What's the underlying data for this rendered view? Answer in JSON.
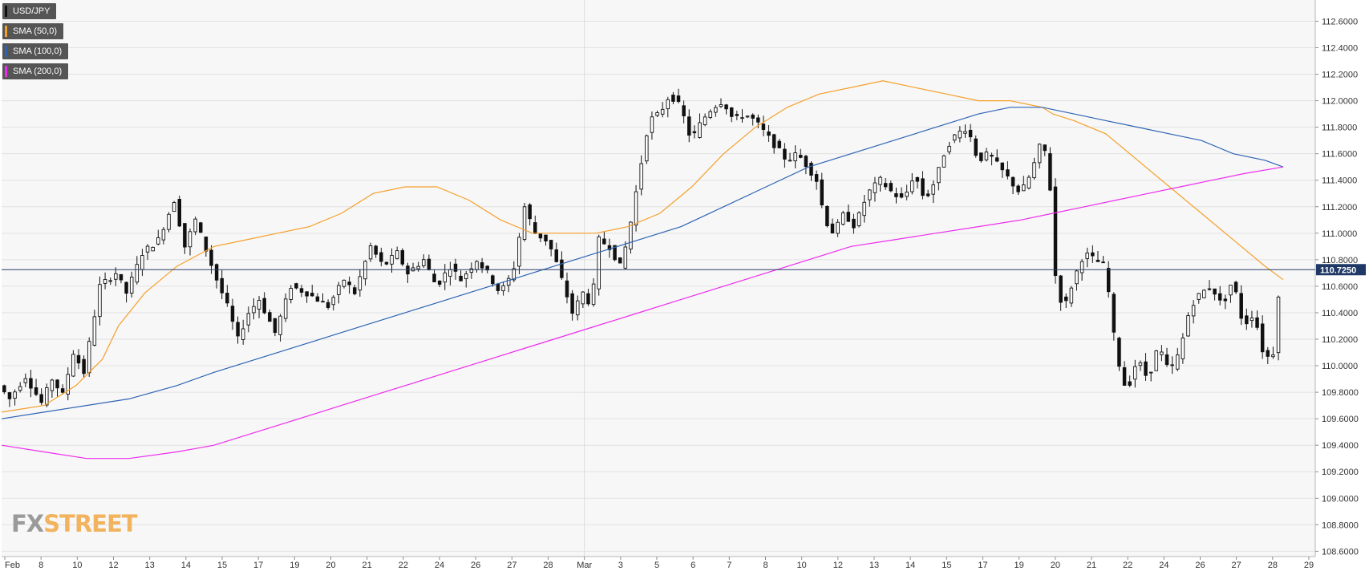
{
  "chart_data": {
    "type": "candlestick",
    "symbol": "USD/JPY",
    "legend": [
      {
        "label": "USD/JPY",
        "color": "#111111"
      },
      {
        "label": "SMA (50,0)",
        "color": "#f5a02a"
      },
      {
        "label": "SMA (100,0)",
        "color": "#2e64b4"
      },
      {
        "label": "SMA (200,0)",
        "color": "#ee2cee"
      }
    ],
    "ylim": [
      108.56,
      112.76
    ],
    "y_ticks": [
      "112.6000",
      "112.4000",
      "112.2000",
      "112.0000",
      "111.8000",
      "111.6000",
      "111.4000",
      "111.2000",
      "111.0000",
      "110.8000",
      "110.6000",
      "110.4000",
      "110.2000",
      "110.0000",
      "109.8000",
      "109.6000",
      "109.4000",
      "109.2000",
      "109.0000",
      "108.8000",
      "108.6000"
    ],
    "x_ticks": [
      "Feb",
      "8",
      "10",
      "12",
      "13",
      "14",
      "15",
      "17",
      "19",
      "20",
      "21",
      "22",
      "24",
      "26",
      "27",
      "28",
      "Mar",
      "3",
      "5",
      "6",
      "7",
      "8",
      "10",
      "12",
      "13",
      "14",
      "15",
      "17",
      "19",
      "20",
      "21",
      "22",
      "24",
      "26",
      "27",
      "28",
      "29"
    ],
    "last_price": 110.725,
    "last_price_label": "110.7250",
    "price_path": [
      [
        0,
        109.85
      ],
      [
        10,
        109.75
      ],
      [
        25,
        109.92
      ],
      [
        40,
        109.72
      ],
      [
        50,
        109.9
      ],
      [
        60,
        109.78
      ],
      [
        70,
        110.1
      ],
      [
        80,
        109.95
      ],
      [
        95,
        110.6
      ],
      [
        110,
        110.7
      ],
      [
        120,
        110.55
      ],
      [
        135,
        110.85
      ],
      [
        150,
        110.95
      ],
      [
        165,
        111.25
      ],
      [
        175,
        110.9
      ],
      [
        185,
        111.1
      ],
      [
        205,
        110.65
      ],
      [
        215,
        110.45
      ],
      [
        225,
        110.2
      ],
      [
        235,
        110.4
      ],
      [
        245,
        110.5
      ],
      [
        260,
        110.25
      ],
      [
        275,
        110.6
      ],
      [
        290,
        110.55
      ],
      [
        310,
        110.45
      ],
      [
        325,
        110.65
      ],
      [
        335,
        110.55
      ],
      [
        350,
        110.9
      ],
      [
        362,
        110.75
      ],
      [
        375,
        110.85
      ],
      [
        385,
        110.7
      ],
      [
        400,
        110.8
      ],
      [
        412,
        110.6
      ],
      [
        425,
        110.75
      ],
      [
        435,
        110.65
      ],
      [
        450,
        110.8
      ],
      [
        460,
        110.7
      ],
      [
        472,
        110.55
      ],
      [
        484,
        110.7
      ],
      [
        495,
        111.2
      ],
      [
        505,
        111.0
      ],
      [
        515,
        110.95
      ],
      [
        522,
        110.85
      ],
      [
        532,
        110.6
      ],
      [
        540,
        110.4
      ],
      [
        550,
        110.55
      ],
      [
        558,
        110.45
      ],
      [
        565,
        110.95
      ],
      [
        575,
        110.9
      ],
      [
        585,
        110.75
      ],
      [
        592,
        110.95
      ],
      [
        602,
        111.4
      ],
      [
        612,
        111.85
      ],
      [
        622,
        111.9
      ],
      [
        632,
        112.05
      ],
      [
        642,
        111.95
      ],
      [
        652,
        111.7
      ],
      [
        662,
        111.85
      ],
      [
        672,
        111.95
      ],
      [
        682,
        112.0
      ],
      [
        692,
        111.85
      ],
      [
        702,
        111.9
      ],
      [
        712,
        111.85
      ],
      [
        722,
        111.75
      ],
      [
        732,
        111.65
      ],
      [
        742,
        111.55
      ],
      [
        752,
        111.6
      ],
      [
        762,
        111.5
      ],
      [
        770,
        111.4
      ],
      [
        778,
        111.1
      ],
      [
        786,
        111.0
      ],
      [
        796,
        111.15
      ],
      [
        806,
        111.05
      ],
      [
        818,
        111.3
      ],
      [
        830,
        111.4
      ],
      [
        842,
        111.3
      ],
      [
        852,
        111.25
      ],
      [
        862,
        111.45
      ],
      [
        872,
        111.25
      ],
      [
        882,
        111.4
      ],
      [
        892,
        111.65
      ],
      [
        902,
        111.75
      ],
      [
        912,
        111.8
      ],
      [
        922,
        111.55
      ],
      [
        932,
        111.6
      ],
      [
        942,
        111.5
      ],
      [
        952,
        111.4
      ],
      [
        962,
        111.3
      ],
      [
        972,
        111.45
      ],
      [
        980,
        111.65
      ],
      [
        988,
        111.6
      ],
      [
        996,
        110.55
      ],
      [
        1004,
        110.45
      ],
      [
        1012,
        110.65
      ],
      [
        1022,
        110.85
      ],
      [
        1032,
        110.8
      ],
      [
        1042,
        110.75
      ],
      [
        1052,
        110.1
      ],
      [
        1062,
        109.8
      ],
      [
        1072,
        110.05
      ],
      [
        1082,
        109.9
      ],
      [
        1092,
        110.15
      ],
      [
        1102,
        109.95
      ],
      [
        1112,
        110.1
      ],
      [
        1122,
        110.45
      ],
      [
        1132,
        110.55
      ],
      [
        1142,
        110.6
      ],
      [
        1152,
        110.45
      ],
      [
        1162,
        110.65
      ],
      [
        1172,
        110.3
      ],
      [
        1182,
        110.4
      ],
      [
        1192,
        110.05
      ],
      [
        1200,
        110.1
      ],
      [
        1207,
        110.72
      ]
    ],
    "sma50": [
      [
        0,
        109.65
      ],
      [
        40,
        109.7
      ],
      [
        70,
        109.85
      ],
      [
        95,
        110.05
      ],
      [
        110,
        110.3
      ],
      [
        135,
        110.55
      ],
      [
        165,
        110.75
      ],
      [
        200,
        110.9
      ],
      [
        230,
        110.95
      ],
      [
        260,
        111.0
      ],
      [
        290,
        111.05
      ],
      [
        320,
        111.15
      ],
      [
        350,
        111.3
      ],
      [
        380,
        111.35
      ],
      [
        410,
        111.35
      ],
      [
        440,
        111.25
      ],
      [
        470,
        111.1
      ],
      [
        500,
        111.0
      ],
      [
        530,
        111.0
      ],
      [
        560,
        111.0
      ],
      [
        590,
        111.05
      ],
      [
        620,
        111.15
      ],
      [
        650,
        111.35
      ],
      [
        680,
        111.6
      ],
      [
        710,
        111.8
      ],
      [
        740,
        111.95
      ],
      [
        770,
        112.05
      ],
      [
        800,
        112.1
      ],
      [
        830,
        112.15
      ],
      [
        860,
        112.1
      ],
      [
        890,
        112.05
      ],
      [
        920,
        112.0
      ],
      [
        950,
        112.0
      ],
      [
        980,
        111.95
      ],
      [
        990,
        111.9
      ],
      [
        1010,
        111.85
      ],
      [
        1040,
        111.75
      ],
      [
        1070,
        111.55
      ],
      [
        1100,
        111.35
      ],
      [
        1130,
        111.15
      ],
      [
        1160,
        110.95
      ],
      [
        1190,
        110.75
      ],
      [
        1207,
        110.65
      ]
    ],
    "sma100": [
      [
        0,
        109.6
      ],
      [
        40,
        109.65
      ],
      [
        80,
        109.7
      ],
      [
        120,
        109.75
      ],
      [
        165,
        109.85
      ],
      [
        200,
        109.95
      ],
      [
        240,
        110.05
      ],
      [
        280,
        110.15
      ],
      [
        320,
        110.25
      ],
      [
        360,
        110.35
      ],
      [
        400,
        110.45
      ],
      [
        440,
        110.55
      ],
      [
        480,
        110.65
      ],
      [
        520,
        110.75
      ],
      [
        560,
        110.85
      ],
      [
        600,
        110.95
      ],
      [
        640,
        111.05
      ],
      [
        680,
        111.2
      ],
      [
        720,
        111.35
      ],
      [
        760,
        111.5
      ],
      [
        800,
        111.6
      ],
      [
        840,
        111.7
      ],
      [
        880,
        111.8
      ],
      [
        920,
        111.9
      ],
      [
        950,
        111.95
      ],
      [
        980,
        111.95
      ],
      [
        1010,
        111.9
      ],
      [
        1040,
        111.85
      ],
      [
        1070,
        111.8
      ],
      [
        1100,
        111.75
      ],
      [
        1130,
        111.7
      ],
      [
        1160,
        111.6
      ],
      [
        1190,
        111.55
      ],
      [
        1207,
        111.5
      ]
    ],
    "sma200": [
      [
        0,
        109.4
      ],
      [
        40,
        109.35
      ],
      [
        80,
        109.3
      ],
      [
        120,
        109.3
      ],
      [
        165,
        109.35
      ],
      [
        200,
        109.4
      ],
      [
        240,
        109.5
      ],
      [
        280,
        109.6
      ],
      [
        320,
        109.7
      ],
      [
        360,
        109.8
      ],
      [
        400,
        109.9
      ],
      [
        440,
        110.0
      ],
      [
        480,
        110.1
      ],
      [
        520,
        110.2
      ],
      [
        560,
        110.3
      ],
      [
        600,
        110.4
      ],
      [
        640,
        110.5
      ],
      [
        680,
        110.6
      ],
      [
        720,
        110.7
      ],
      [
        760,
        110.8
      ],
      [
        800,
        110.9
      ],
      [
        840,
        110.95
      ],
      [
        880,
        111.0
      ],
      [
        920,
        111.05
      ],
      [
        960,
        111.1
      ],
      [
        990,
        111.15
      ],
      [
        1020,
        111.2
      ],
      [
        1050,
        111.25
      ],
      [
        1080,
        111.3
      ],
      [
        1110,
        111.35
      ],
      [
        1140,
        111.4
      ],
      [
        1170,
        111.45
      ],
      [
        1207,
        111.5
      ]
    ]
  },
  "brand": {
    "fx": "FX",
    "street": "STREET"
  }
}
